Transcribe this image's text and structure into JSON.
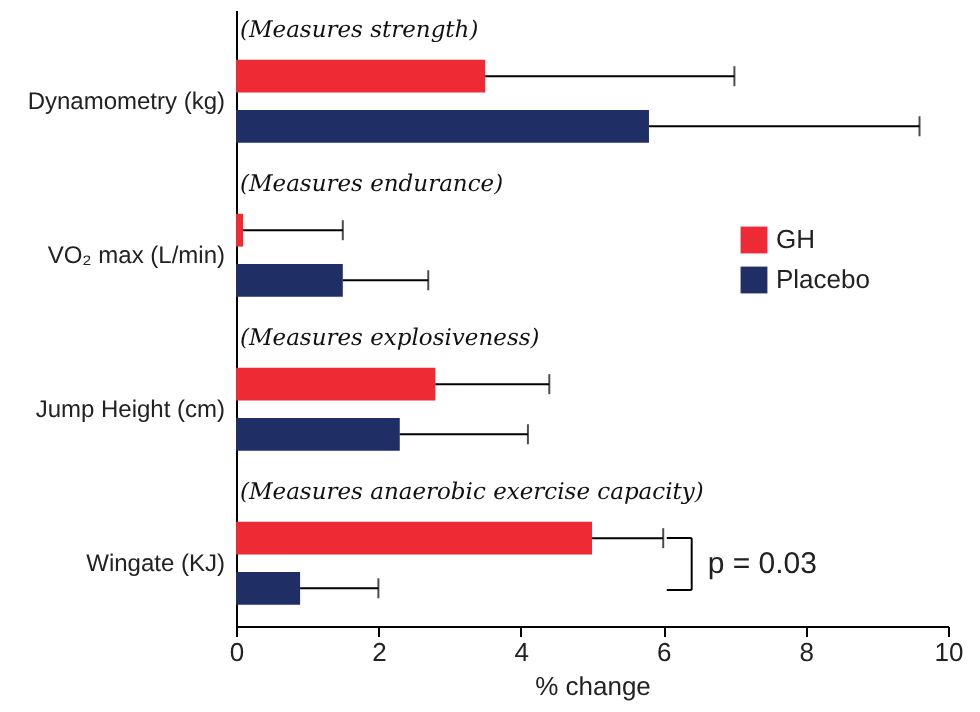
{
  "chart_data": {
    "type": "bar",
    "orientation": "horizontal",
    "xlabel": "% change",
    "categories": [
      "Dynamometry (kg)",
      "VO₂ max (L/min)",
      "Jump Height (cm)",
      "Wingate (KJ)"
    ],
    "series": [
      {
        "name": "GH",
        "color": "#ee2a35",
        "values": [
          3.5,
          0.1,
          2.8,
          5.0
        ],
        "errors": [
          [
            3.5,
            7.0
          ],
          [
            0.1,
            1.5
          ],
          [
            2.8,
            4.4
          ],
          [
            5.0,
            6.0
          ]
        ]
      },
      {
        "name": "Placebo",
        "color": "#1f2f66",
        "values": [
          5.8,
          1.5,
          2.3,
          0.9
        ],
        "errors": [
          [
            5.8,
            9.6
          ],
          [
            1.5,
            2.7
          ],
          [
            2.3,
            4.1
          ],
          [
            0.9,
            2.0
          ]
        ]
      }
    ],
    "xlim": [
      0,
      10
    ],
    "xticks": [
      0,
      2,
      4,
      6,
      8,
      10
    ],
    "grid": false,
    "legend": "right",
    "annotations": [
      "(Measures strength)",
      "(Measures endurance)",
      "(Measures explosiveness)",
      "(Measures anaerobic exercise capacity)",
      "p = 0.03"
    ]
  }
}
